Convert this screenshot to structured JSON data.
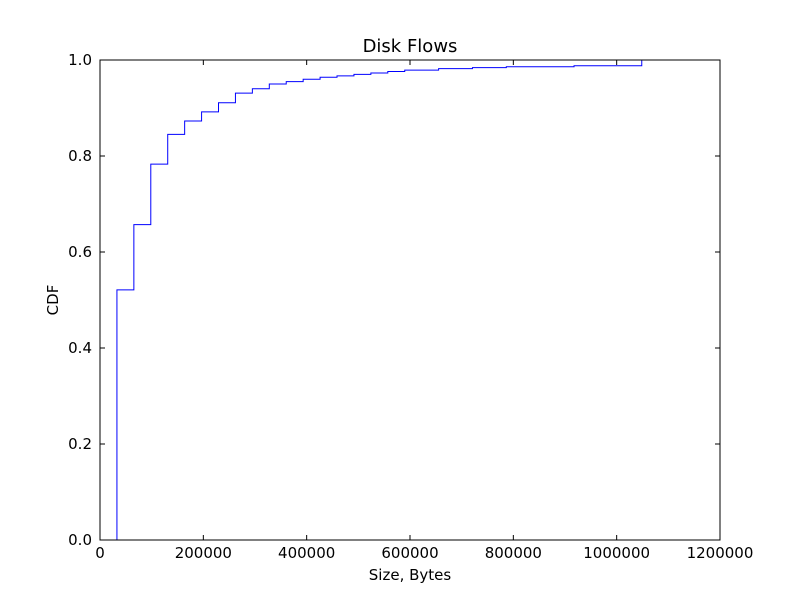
{
  "chart_data": {
    "type": "line",
    "title": "Disk Flows",
    "xlabel": "Size, Bytes",
    "ylabel": "CDF",
    "xlim": [
      0,
      1200000
    ],
    "ylim": [
      0.0,
      1.0
    ],
    "xticks": [
      0,
      200000,
      400000,
      600000,
      800000,
      1000000,
      1200000
    ],
    "xtick_labels": [
      "0",
      "200000",
      "400000",
      "600000",
      "800000",
      "1000000",
      "1200000"
    ],
    "yticks": [
      0.0,
      0.2,
      0.4,
      0.6,
      0.8,
      1.0
    ],
    "ytick_labels": [
      "0.0",
      "0.2",
      "0.4",
      "0.6",
      "0.8",
      "1.0"
    ],
    "grid": false,
    "line_color": "#0000ff",
    "step": true,
    "x": [
      32768,
      32768,
      65536,
      98304,
      131072,
      163840,
      196608,
      229376,
      262144,
      294912,
      327680,
      360448,
      393216,
      425984,
      458752,
      491520,
      524288,
      557056,
      589824,
      655360,
      720896,
      786432,
      917504,
      1048576,
      1048576
    ],
    "y": [
      0.0,
      0.521,
      0.657,
      0.783,
      0.845,
      0.873,
      0.892,
      0.911,
      0.931,
      0.94,
      0.95,
      0.955,
      0.96,
      0.964,
      0.967,
      0.97,
      0.973,
      0.976,
      0.979,
      0.982,
      0.984,
      0.986,
      0.988,
      0.989,
      1.0
    ]
  }
}
